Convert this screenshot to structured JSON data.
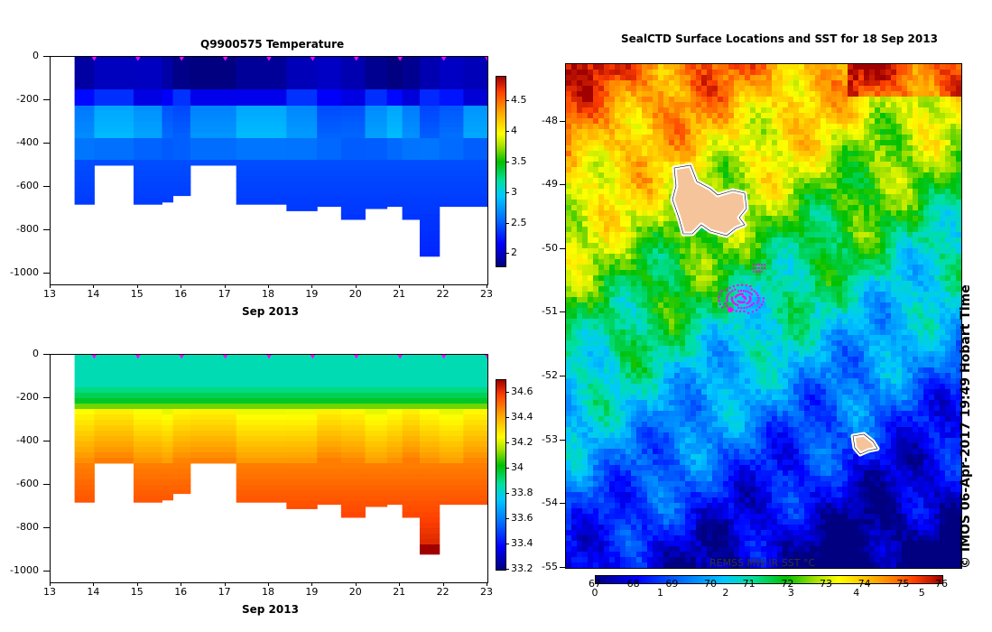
{
  "left_panel": {
    "top_title": "Q9900575  Temperature",
    "x_ticks": [
      "13",
      "14",
      "15",
      "16",
      "17",
      "18",
      "19",
      "20",
      "21",
      "22",
      "23"
    ],
    "x_axis_title": "Sep 2013",
    "y_ticks_top": [
      "0",
      "-200",
      "-400",
      "-600",
      "-800",
      "-1000"
    ],
    "y_ticks_bottom": [
      "0",
      "-200",
      "-400",
      "-600",
      "-800",
      "-1000"
    ],
    "temp_colorbar_ticks": [
      "4.5",
      "4",
      "3.5",
      "3",
      "2.5",
      "2"
    ],
    "sal_colorbar_ticks": [
      "34.6",
      "34.4",
      "34.2",
      "34",
      "33.8",
      "33.6",
      "33.4",
      "33.2"
    ]
  },
  "right_panel": {
    "title": "SealCTD Surface Locations and SST for 18 Sep 2013",
    "lat_ticks": [
      "-48",
      "-49",
      "-50",
      "-51",
      "-52",
      "-53",
      "-54",
      "-55"
    ],
    "colorbar_label": "REMSS MW-IR SST °C",
    "colorbar_ticks_bottom": [
      "0",
      "1",
      "2",
      "3",
      "4",
      "5"
    ],
    "colorbar_ticks_top": [
      "67",
      "68",
      "69",
      "70",
      "71",
      "72",
      "73",
      "74",
      "75",
      "76"
    ],
    "copyright": "© IMOS 06-Apr-2017 19:49 Hobart Time"
  },
  "chart_data": [
    {
      "type": "heatmap",
      "title": "Q9900575  Temperature",
      "xlabel": "Sep 2013",
      "ylabel": "",
      "xlim": [
        13,
        23
      ],
      "ylim": [
        -1050,
        0
      ],
      "colorbar_range": [
        1.8,
        4.9
      ],
      "profiles": [
        {
          "day": 13.6,
          "max_depth": -680
        },
        {
          "day": 14.4,
          "max_depth": -500
        },
        {
          "day": 15.4,
          "max_depth": -680
        },
        {
          "day": 15.7,
          "max_depth": -670
        },
        {
          "day": 15.9,
          "max_depth": -640
        },
        {
          "day": 16.5,
          "max_depth": -500
        },
        {
          "day": 18.0,
          "max_depth": -680
        },
        {
          "day": 18.8,
          "max_depth": -710
        },
        {
          "day": 19.4,
          "max_depth": -690
        },
        {
          "day": 19.9,
          "max_depth": -750
        },
        {
          "day": 20.5,
          "max_depth": -700
        },
        {
          "day": 20.9,
          "max_depth": -690
        },
        {
          "day": 21.2,
          "max_depth": -750
        },
        {
          "day": 21.7,
          "max_depth": -920
        },
        {
          "day": 22.1,
          "max_depth": -690
        },
        {
          "day": 22.8,
          "max_depth": -690
        }
      ]
    },
    {
      "type": "heatmap",
      "title": "",
      "xlabel": "Sep 2013",
      "ylabel": "",
      "xlim": [
        13,
        23
      ],
      "ylim": [
        -1050,
        0
      ],
      "colorbar_range": [
        33.2,
        34.7
      ]
    },
    {
      "type": "heatmap",
      "title": "SealCTD Surface Locations and SST for 18 Sep 2013",
      "lat_range": [
        -55,
        -47.1
      ],
      "colorbar_label": "REMSS MW-IR SST °C",
      "colorbar_range_c": [
        0,
        5.3
      ]
    }
  ]
}
